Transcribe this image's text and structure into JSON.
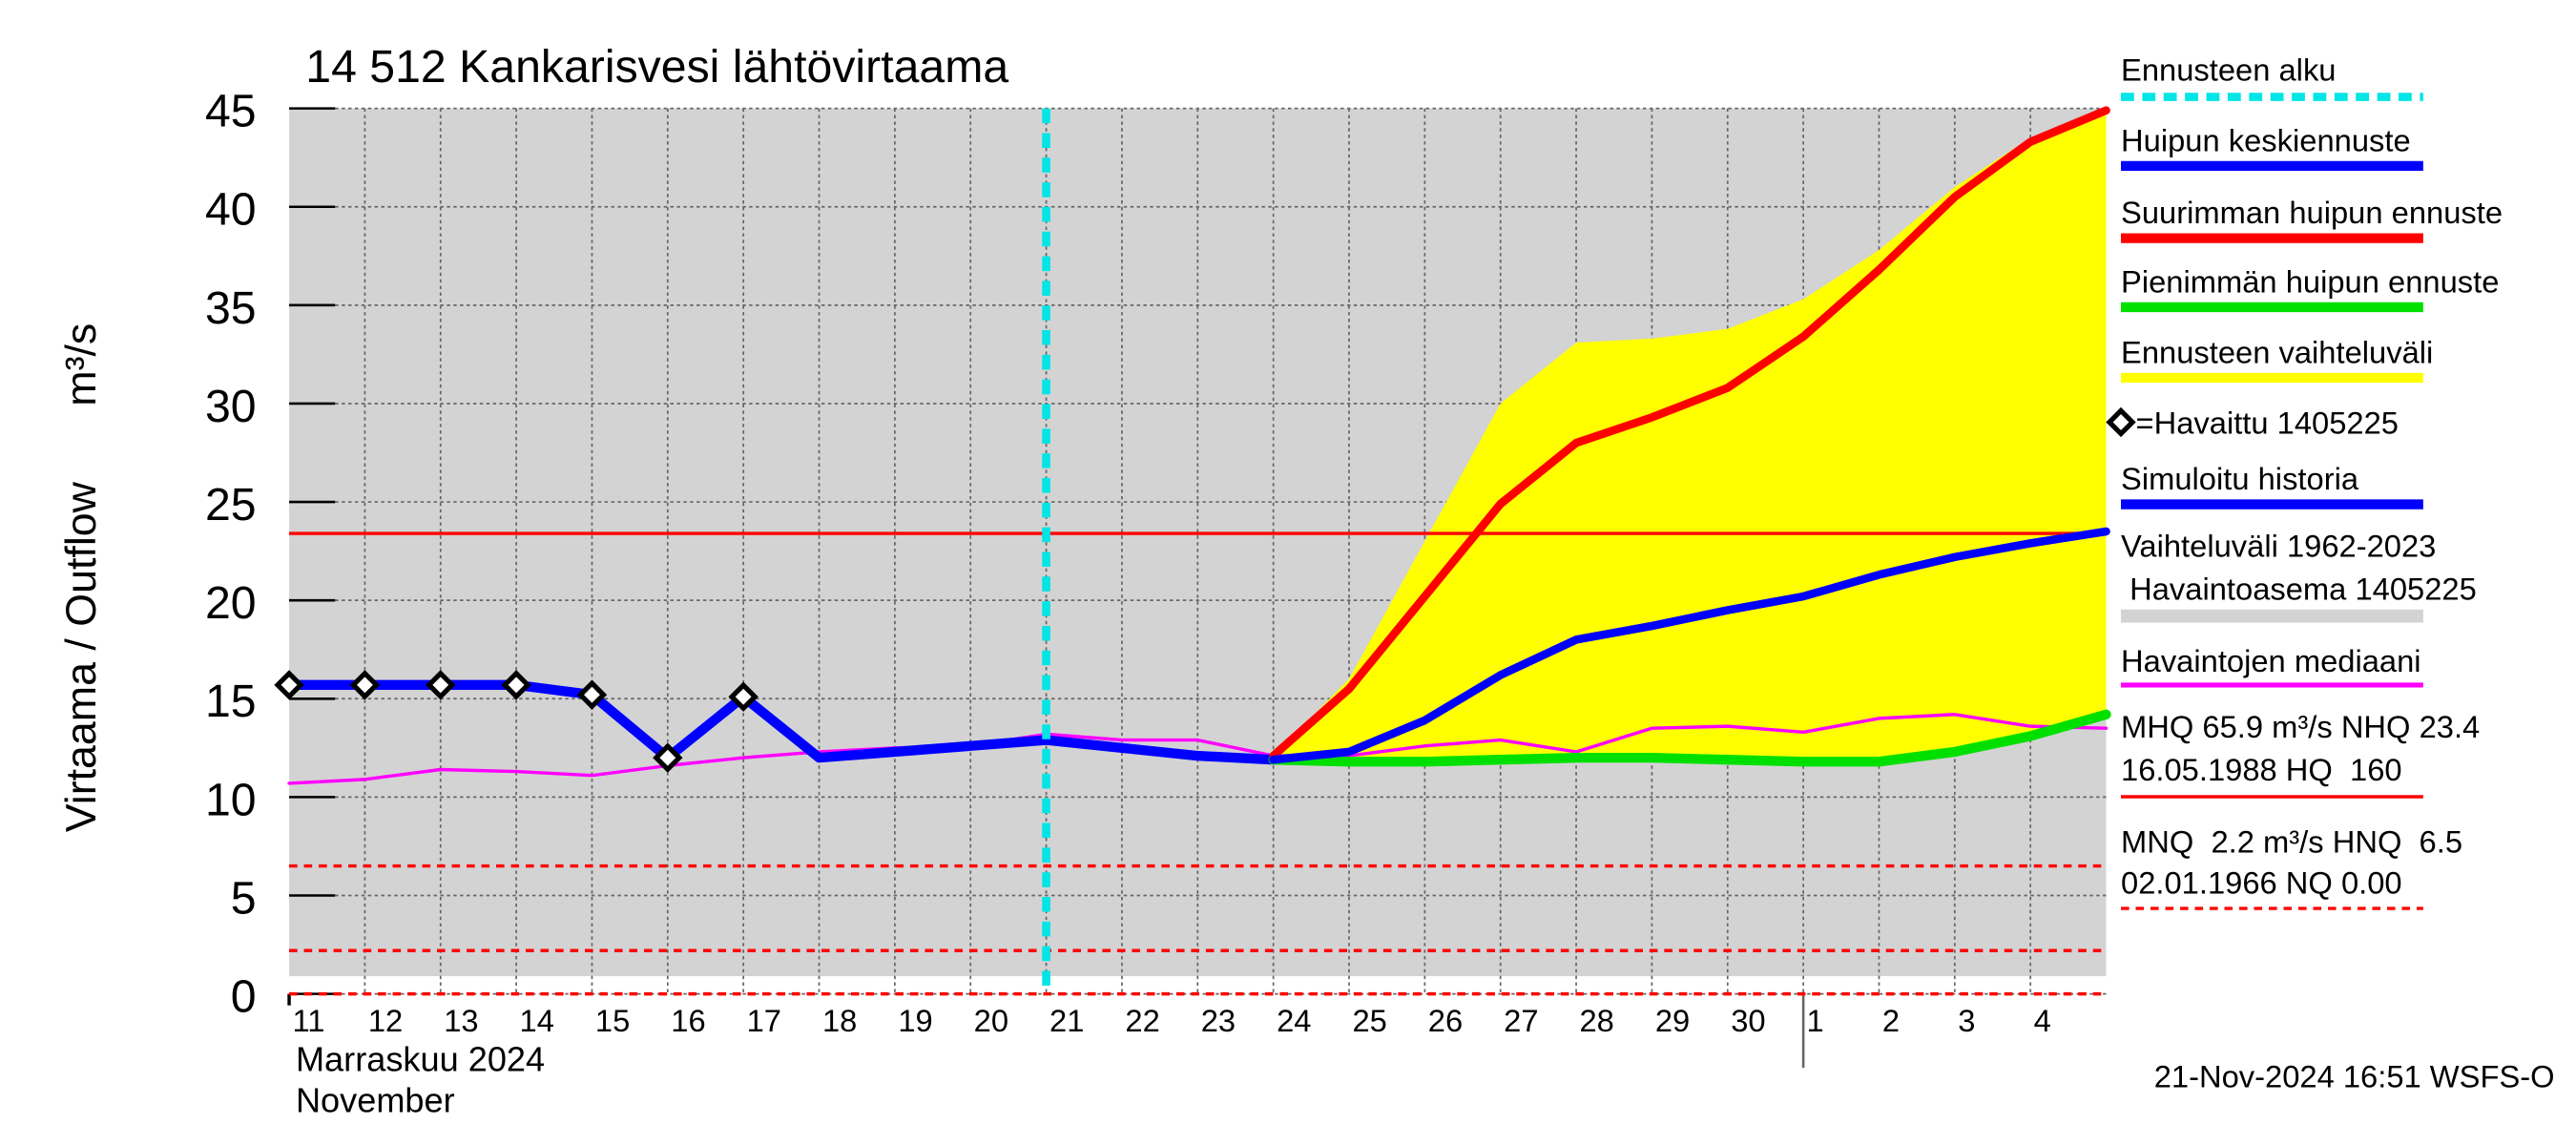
{
  "chart_data": {
    "type": "line",
    "title": "14 512 Kankarisvesi lähtövirtaama",
    "y_label": "Virtaama / Outflow",
    "y_unit": "m³/s",
    "month_label": "Marraskuu 2024",
    "month_label_en": "November",
    "footer": "21-Nov-2024 16:51 WSFS-O",
    "categories": [
      "11",
      "12",
      "13",
      "14",
      "15",
      "16",
      "17",
      "18",
      "19",
      "20",
      "21",
      "22",
      "23",
      "24",
      "25",
      "26",
      "27",
      "28",
      "29",
      "30",
      "1",
      "2",
      "3",
      "4",
      null
    ],
    "month_break_index": 20,
    "ylim": [
      0,
      45
    ],
    "yticks": [
      0,
      5,
      10,
      15,
      20,
      25,
      30,
      35,
      40,
      45
    ],
    "grid": true,
    "forecast_start": {
      "name": "Ennusteen alku",
      "index": 10,
      "color": "#00e5e5"
    },
    "history_range": {
      "name": "Vaihteluväli 1962-2023",
      "name2": " Havaintoasema 1405225",
      "color": "#d3d3d3",
      "lower": 0.9,
      "upper": 45
    },
    "forecast_range": {
      "name": "Ennusteen vaihteluväli",
      "color": "#ffff00",
      "lower": [
        null,
        null,
        null,
        null,
        null,
        null,
        null,
        null,
        null,
        null,
        null,
        null,
        null,
        11.9,
        11.8,
        11.8,
        11.9,
        12.0,
        12.0,
        11.9,
        11.8,
        11.8,
        12.3,
        13.1,
        14.2
      ],
      "upper": [
        null,
        null,
        null,
        null,
        null,
        null,
        null,
        null,
        null,
        null,
        null,
        null,
        null,
        12.1,
        16.0,
        23.0,
        30.0,
        33.1,
        33.3,
        33.8,
        35.3,
        37.8,
        41.0,
        43.5,
        45.0
      ]
    },
    "series": [
      {
        "name": "Havaintojen mediaani",
        "color": "#ff00ff",
        "width": 2,
        "values": [
          10.7,
          10.9,
          11.4,
          11.3,
          11.1,
          11.6,
          12.0,
          12.3,
          12.5,
          12.6,
          13.2,
          12.9,
          12.9,
          12.1,
          12.1,
          12.6,
          12.9,
          12.3,
          13.5,
          13.6,
          13.3,
          14.0,
          14.2,
          13.6,
          13.5
        ]
      },
      {
        "name": "Simuloitu historia",
        "color": "#0000ff",
        "width": 6,
        "values": [
          15.7,
          15.7,
          15.7,
          15.7,
          15.2,
          12.0,
          15.1,
          12.0,
          12.3,
          12.6,
          12.9,
          12.5,
          12.1,
          11.9,
          null,
          null,
          null,
          null,
          null,
          null,
          null,
          null,
          null,
          null,
          null
        ]
      },
      {
        "name": "Pienimmän huipun ennuste",
        "color": "#00e000",
        "width": 6,
        "values": [
          null,
          null,
          null,
          null,
          null,
          null,
          null,
          null,
          null,
          null,
          null,
          null,
          null,
          11.9,
          11.8,
          11.8,
          11.9,
          12.0,
          12.0,
          11.9,
          11.8,
          11.8,
          12.3,
          13.1,
          14.2
        ]
      },
      {
        "name": "Suurimman huipun ennuste",
        "color": "#ff0000",
        "width": 5,
        "values": [
          null,
          null,
          null,
          null,
          null,
          null,
          null,
          null,
          null,
          null,
          null,
          null,
          null,
          12.1,
          15.5,
          20.2,
          24.9,
          28.0,
          29.3,
          30.8,
          33.4,
          36.8,
          40.5,
          43.3,
          44.9
        ]
      },
      {
        "name": "Huipun keskiennuste",
        "color": "#0000ff",
        "width": 5,
        "values": [
          null,
          null,
          null,
          null,
          null,
          null,
          null,
          null,
          null,
          null,
          null,
          null,
          null,
          11.9,
          12.3,
          13.9,
          16.2,
          18.0,
          18.7,
          19.5,
          20.2,
          21.3,
          22.2,
          22.9,
          23.5
        ]
      }
    ],
    "observed": {
      "name": "=Havaittu 1405225",
      "color": "#000000",
      "values": [
        15.7,
        15.7,
        15.7,
        15.7,
        15.2,
        12.0,
        15.1,
        null,
        null,
        null,
        null,
        null,
        null,
        null,
        null,
        null,
        null,
        null,
        null,
        null,
        null,
        null,
        null,
        null,
        null
      ]
    },
    "reference_high": {
      "name": "MHQ 65.9 m³/s NHQ 23.4",
      "name2": "16.05.1988 HQ  160",
      "color": "#ff0000",
      "values": [
        23.4
      ]
    },
    "reference_low": {
      "name": "MNQ  2.2 m³/s HNQ  6.5",
      "name2": "02.01.1966 NQ 0.00",
      "color": "#ff0000",
      "values": [
        6.5,
        2.2,
        0
      ]
    }
  }
}
